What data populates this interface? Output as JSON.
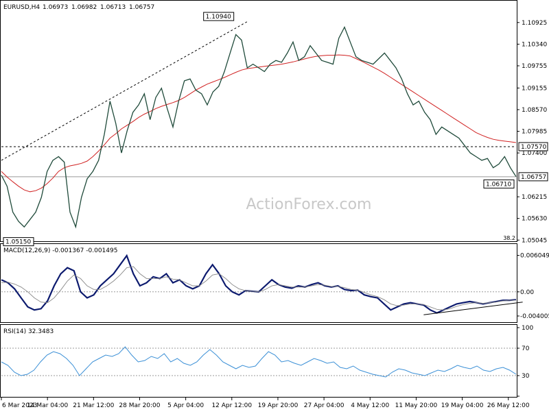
{
  "chart_data": [
    {
      "type": "line",
      "panel": "price",
      "header": {
        "symbol": "EURUSD,H4",
        "ohlc": [
          "1.06973",
          "1.06982",
          "1.06713",
          "1.06757"
        ]
      },
      "ylim": [
        1.0505,
        1.112
      ],
      "y_ticks": [
        "1.10925",
        "1.10340",
        "1.09755",
        "1.09155",
        "1.08570",
        "1.07985",
        "1.07400",
        "1.06215",
        "1.05630",
        "1.05045"
      ],
      "x_ticks": [
        "6 Mar 2023",
        "14 Mar 04:00",
        "21 Mar 12:00",
        "28 Mar 20:00",
        "5 Apr 04:00",
        "12 Apr 12:00",
        "19 Apr 20:00",
        "27 Apr 04:00",
        "4 May 12:00",
        "11 May 20:00",
        "19 May 04:00",
        "26 May 12:00"
      ],
      "price_series": [
        1.068,
        1.065,
        1.058,
        1.0555,
        1.054,
        1.056,
        1.058,
        1.062,
        1.069,
        1.072,
        1.073,
        1.0715,
        1.058,
        1.054,
        1.062,
        1.067,
        1.069,
        1.072,
        1.079,
        1.088,
        1.082,
        1.074,
        1.08,
        1.085,
        1.087,
        1.09,
        1.083,
        1.089,
        1.0915,
        1.086,
        1.081,
        1.088,
        1.0935,
        1.094,
        1.091,
        1.09,
        1.087,
        1.0905,
        1.092,
        1.096,
        1.101,
        1.106,
        1.1045,
        1.097,
        1.098,
        1.097,
        1.096,
        1.098,
        1.099,
        1.0985,
        1.101,
        1.104,
        1.099,
        1.1,
        1.103,
        1.101,
        1.099,
        1.0985,
        1.098,
        1.105,
        1.108,
        1.104,
        1.1,
        1.099,
        1.0985,
        1.098,
        1.0995,
        1.101,
        1.099,
        1.097,
        1.094,
        1.09,
        1.087,
        1.088,
        1.085,
        1.083,
        1.079,
        1.081,
        1.08,
        1.079,
        1.078,
        1.076,
        1.074,
        1.073,
        1.072,
        1.0725,
        1.07,
        1.071,
        1.073,
        1.07,
        1.0676
      ],
      "ma_series": [
        1.069,
        1.0675,
        1.0662,
        1.065,
        1.064,
        1.0635,
        1.0638,
        1.0645,
        1.0657,
        1.0672,
        1.069,
        1.07,
        1.0705,
        1.0708,
        1.0712,
        1.0718,
        1.073,
        1.0745,
        1.0762,
        1.078,
        1.0792,
        1.0805,
        1.0815,
        1.0825,
        1.0836,
        1.0845,
        1.0852,
        1.086,
        1.0866,
        1.0871,
        1.0876,
        1.0882,
        1.089,
        1.09,
        1.091,
        1.0918,
        1.0926,
        1.0932,
        1.0938,
        1.0944,
        1.0951,
        1.0958,
        1.0964,
        1.0968,
        1.097,
        1.0972,
        1.0974,
        1.0976,
        1.0978,
        1.098,
        1.0983,
        1.0986,
        1.099,
        1.0994,
        1.0998,
        1.1001,
        1.1003,
        1.1004,
        1.1004,
        1.1005,
        1.1004,
        1.1002,
        1.0995,
        1.0988,
        1.098,
        1.0972,
        1.0964,
        1.0955,
        1.0945,
        1.0935,
        1.0925,
        1.0915,
        1.0905,
        1.0895,
        1.0885,
        1.0875,
        1.0865,
        1.0855,
        1.0845,
        1.0835,
        1.0825,
        1.0815,
        1.0805,
        1.0795,
        1.0788,
        1.0782,
        1.0777,
        1.0774,
        1.0772,
        1.077,
        1.0768
      ],
      "trendline": {
        "from": [
          0,
          1.072
        ],
        "to": [
          43,
          1.1095
        ]
      },
      "annotations": [
        {
          "label": "1.10940",
          "index": 38,
          "value": 1.1094
        },
        {
          "label": "1.05150",
          "index": 3,
          "value": 1.0515
        },
        {
          "label": "1.06710",
          "index": 87,
          "value": 1.0671
        }
      ],
      "hlines": [
        {
          "label": "1.07570",
          "value": 1.0757,
          "style": "dashed"
        },
        {
          "label": "1.06757",
          "value": 1.06757,
          "style": "solid"
        }
      ],
      "fib_label": "38.2",
      "watermark": "ActionForex.com"
    },
    {
      "type": "line",
      "panel": "macd",
      "header": "MACD(12,26,9) -0.001367 -0.001495",
      "ylim": [
        -0.0048,
        0.0068
      ],
      "y_ticks": [
        "0.006049",
        "0.00",
        "-0.004005"
      ],
      "zero_line": 0,
      "series": [
        {
          "values": [
            0.002,
            0.0015,
            0.0005,
            -0.001,
            -0.0025,
            -0.003,
            -0.0028,
            -0.0015,
            0.001,
            0.003,
            0.004,
            0.0035,
            0.0,
            -0.001,
            -0.0005,
            0.001,
            0.002,
            0.003,
            0.0045,
            0.006,
            0.003,
            0.001,
            0.0015,
            0.0025,
            0.0022,
            0.003,
            0.0015,
            0.002,
            0.001,
            0.0005,
            0.001,
            0.003,
            0.0045,
            0.003,
            0.001,
            0.0,
            -0.0005,
            0.0002,
            0.0001,
            0.0,
            0.001,
            0.002,
            0.0012,
            0.0008,
            0.0006,
            0.001,
            0.0008,
            0.0012,
            0.0015,
            0.001,
            0.0008,
            0.001,
            0.0004,
            0.0002,
            0.0003,
            -0.0005,
            -0.0008,
            -0.001,
            -0.002,
            -0.003,
            -0.0025,
            -0.002,
            -0.0018,
            -0.002,
            -0.0022,
            -0.003,
            -0.0035,
            -0.003,
            -0.0025,
            -0.002,
            -0.0018,
            -0.0016,
            -0.0018,
            -0.002,
            -0.0018,
            -0.0016,
            -0.0014,
            -0.0014,
            -0.0013
          ]
        },
        {
          "values": [
            0.0015,
            0.0016,
            0.0013,
            0.0008,
            0.0,
            -0.001,
            -0.0017,
            -0.0018,
            -0.001,
            0.0003,
            0.0018,
            0.0028,
            0.0022,
            0.001,
            0.0004,
            0.0004,
            0.001,
            0.0018,
            0.0028,
            0.004,
            0.0042,
            0.003,
            0.0022,
            0.0022,
            0.0022,
            0.0025,
            0.0021,
            0.002,
            0.0015,
            0.001,
            0.001,
            0.0018,
            0.0028,
            0.003,
            0.0022,
            0.0012,
            0.0005,
            0.0002,
            0.0001,
            0.0,
            0.0004,
            0.001,
            0.0012,
            0.001,
            0.0008,
            0.0008,
            0.0008,
            0.001,
            0.0012,
            0.0011,
            0.0009,
            0.0009,
            0.0007,
            0.0004,
            0.0003,
            -0.0001,
            -0.0005,
            -0.0008,
            -0.0013,
            -0.002,
            -0.0023,
            -0.0022,
            -0.002,
            -0.002,
            -0.0021,
            -0.0025,
            -0.0029,
            -0.003,
            -0.0028,
            -0.0024,
            -0.0021,
            -0.0019,
            -0.0018,
            -0.0019,
            -0.0018,
            -0.0017,
            -0.0015,
            -0.0014,
            -0.0014
          ]
        }
      ],
      "support_line": {
        "from": [
          64,
          -0.0038
        ],
        "to": [
          79,
          -0.0017
        ]
      }
    },
    {
      "type": "line",
      "panel": "rsi",
      "header": "RSI(14) 32.3483",
      "ylim": [
        0,
        100
      ],
      "y_ticks": [
        "100",
        "70",
        "30",
        "0"
      ],
      "levels": [
        70,
        30
      ],
      "values": [
        50,
        45,
        35,
        30,
        32,
        38,
        50,
        60,
        65,
        62,
        55,
        45,
        30,
        40,
        50,
        55,
        60,
        58,
        62,
        72,
        60,
        50,
        52,
        58,
        55,
        62,
        50,
        55,
        48,
        45,
        50,
        60,
        68,
        60,
        50,
        45,
        40,
        45,
        42,
        44,
        55,
        65,
        60,
        50,
        52,
        48,
        45,
        50,
        55,
        52,
        48,
        50,
        42,
        40,
        44,
        38,
        35,
        32,
        30,
        28,
        35,
        40,
        38,
        34,
        32,
        30,
        34,
        38,
        36,
        40,
        45,
        42,
        40,
        44,
        38,
        36,
        40,
        42,
        38,
        32
      ]
    }
  ]
}
